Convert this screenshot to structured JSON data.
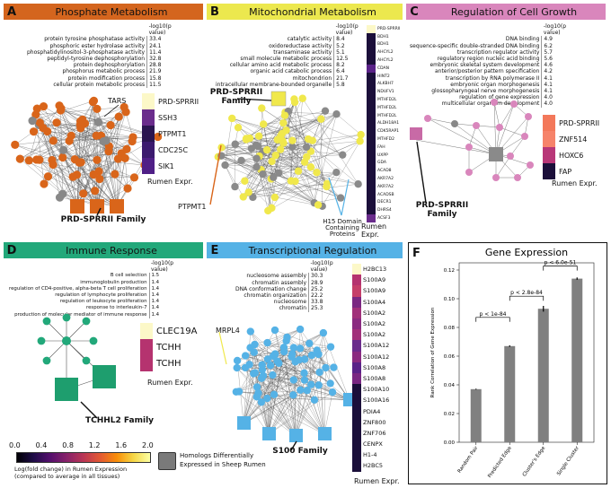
{
  "A": {
    "letter": "A",
    "title": "Phosphate Metabolism",
    "color": "#d4651e",
    "header": "-log10(p value)",
    "terms": [
      [
        "protein tyrosine phosphatase activity",
        "33.4"
      ],
      [
        "phosphoric ester hydrolase activity",
        "24.1"
      ],
      [
        "phosphatidylinositol-3-phosphatase activity",
        "11.4"
      ],
      [
        "peptidyl-tyrosine dephosphorylation",
        "32.8"
      ],
      [
        "protein dephosphorylation",
        "28.8"
      ],
      [
        "phosphorus metabolic process",
        "21.9"
      ],
      [
        "protein modification process",
        "15.8"
      ],
      [
        "cellular protein metabolic process",
        "11.5"
      ]
    ],
    "genes": [
      "PRD-SPRRII",
      "SSH3",
      "PTPMT1",
      "CDC25C",
      "SIK1"
    ],
    "gene_colors": [
      "#fcf8c8",
      "#6a2c8c",
      "#2a1550",
      "#3b1a6e",
      "#4f1f86"
    ],
    "rumen": "Rumen Expr.",
    "tars": "TARS",
    "family": "PRD-SPRRII Family"
  },
  "B": {
    "letter": "B",
    "title": "Mitochondrial Metabolism",
    "color": "#ece84e",
    "header": "-log10(p value)",
    "terms": [
      [
        "catalytic activity",
        "8.4"
      ],
      [
        "oxidoreductase activity",
        "5.2"
      ],
      [
        "transaminase activity",
        "5.1"
      ],
      [
        "small molecule metabolic process",
        "12.5"
      ],
      [
        "cellular amino acid metabolic process",
        "8.2"
      ],
      [
        "organic acid catabolic process",
        "6.4"
      ],
      [
        "mitochondrion",
        "21.7"
      ],
      [
        "intracellular membrane-bounded organelle",
        "5.8"
      ]
    ],
    "genes": [
      "PRD-SPRRII",
      "BDH1",
      "BDH1",
      "AHCYL2",
      "AHCYL2",
      "CDAN",
      "HINT2",
      "ALKBH7",
      "NDUFV1",
      "MTHFD2L",
      "MTHFD2L",
      "MTHFD2L",
      "ALDH18A1",
      "CDK5RAP1",
      "MTHFD2",
      "FAH",
      "UXPP",
      "GDA",
      "ACAD8",
      "AKR7A2",
      "AKR7A2",
      "ACADSB",
      "DECR1",
      "DHRS4",
      "ACSF3"
    ],
    "rumen": "Rumen Expr.",
    "family": "PRD-SPRRII Family",
    "ptpmt1": "PTPMT1",
    "h15": "H15 Domain Containing Proteins"
  },
  "C": {
    "letter": "C",
    "title": "Regulation of Cell Growth",
    "color": "#d986bc",
    "header": "-log10(p value)",
    "terms": [
      [
        "DNA binding",
        "4.9"
      ],
      [
        "sequence-specific double-stranded DNA binding",
        "6.2"
      ],
      [
        "transcription regulator activity",
        "5.7"
      ],
      [
        "regulatory region nucleic acid binding",
        "5.6"
      ],
      [
        "embryonic skeletal system development",
        "4.6"
      ],
      [
        "anterior/posterior pattern specification",
        "4.2"
      ],
      [
        "transcription by RNA polymerase II",
        "4.1"
      ],
      [
        "embryonic organ morphogenesis",
        "4.1"
      ],
      [
        "glossopharyngeal nerve morphogenesis",
        "4.1"
      ],
      [
        "regulation of gene expression",
        "4.0"
      ],
      [
        "multicellular organism development",
        "4.0"
      ]
    ],
    "genes": [
      "PRD-SPRRII",
      "ZNF514",
      "HOXC6",
      "FAP"
    ],
    "gene_colors": [
      "#f3785a",
      "#f6836a",
      "#b83778",
      "#1b0f3a"
    ],
    "rumen": "Rumen Expr.",
    "family": "PRD-SPRRII Family"
  },
  "D": {
    "letter": "D",
    "title": "Immune Response",
    "color": "#22a87a",
    "header": "-log10(p value)",
    "terms": [
      [
        "B cell selection",
        "1.5"
      ],
      [
        "immunoglobulin production",
        "1.4"
      ],
      [
        "regulation of CD4-positive, alpha-beta T cell proliferation",
        "1.4"
      ],
      [
        "regulation of lymphocyte proliferation",
        "1.4"
      ],
      [
        "regulation of leukocyte proliferation",
        "1.4"
      ],
      [
        "response to interleukin-7",
        "1.4"
      ],
      [
        "production of molecular mediator of immune response",
        "1.4"
      ]
    ],
    "genes": [
      "CLEC19A",
      "TCHH",
      "TCHH"
    ],
    "gene_colors": [
      "#fcf8c8",
      "#b5336f",
      "#b5336f"
    ],
    "rumen": "Rumen Expr.",
    "family": "TCHHL2 Family"
  },
  "E": {
    "letter": "E",
    "title": "Transcriptional Regulation",
    "color": "#55b2e6",
    "header": "-log10(p value)",
    "terms": [
      [
        "nucleosome assembly",
        "30.3"
      ],
      [
        "chromatin assembly",
        "28.9"
      ],
      [
        "DNA conformation change",
        "25.2"
      ],
      [
        "chromatin organization",
        "22.2"
      ],
      [
        "nucleosome",
        "33.8"
      ],
      [
        "chromatin",
        "25.3"
      ]
    ],
    "genes": [
      "H2BC13",
      "S100A9",
      "S100A9",
      "S100A4",
      "S100A2",
      "S100A2",
      "S100A2",
      "S100A12",
      "S100A12",
      "S100A8",
      "S100A8",
      "S100A10",
      "S100A16",
      "PDIA4",
      "ZNF800",
      "ZNF706",
      "CENPX",
      "H1-4",
      "H2BC5"
    ],
    "rumen": "Rumen Expr.",
    "mrpl4": "MRPL4",
    "family": "S100 Family"
  },
  "F": {
    "letter": "F",
    "title": "Gene Expression",
    "chart_data": {
      "type": "bar",
      "title": "Gene Expression",
      "ylabel": "Rank Correlation of Gene Expression",
      "xlabel": "",
      "categories": [
        "Random Pair",
        "Predicted Edge",
        "Cluster's Edge",
        "Single Cluster"
      ],
      "values": [
        0.037,
        0.067,
        0.093,
        0.114
      ],
      "errors": [
        0.0003,
        0.0005,
        0.002,
        0.0008
      ],
      "ylim": [
        0,
        0.125
      ],
      "yticks": [
        "0.00",
        "0.02",
        "0.04",
        "0.06",
        "0.08",
        "0.10",
        "0.12"
      ],
      "significance": [
        "p < 1e-84",
        "p < 2.8e-84",
        "p < 6.0e-51"
      ],
      "bar_color": "#808080"
    }
  },
  "colorbar": {
    "ticks": [
      "0.0",
      "0.4",
      "0.8",
      "1.2",
      "1.6",
      "2.0"
    ],
    "caption1": "Log(fold change) in Rumen Expression",
    "caption2": "(compared to average in all tissues)"
  },
  "homolog": {
    "text1": "Homologs Differentially",
    "text2": "Expressed in Sheep Rumen"
  }
}
